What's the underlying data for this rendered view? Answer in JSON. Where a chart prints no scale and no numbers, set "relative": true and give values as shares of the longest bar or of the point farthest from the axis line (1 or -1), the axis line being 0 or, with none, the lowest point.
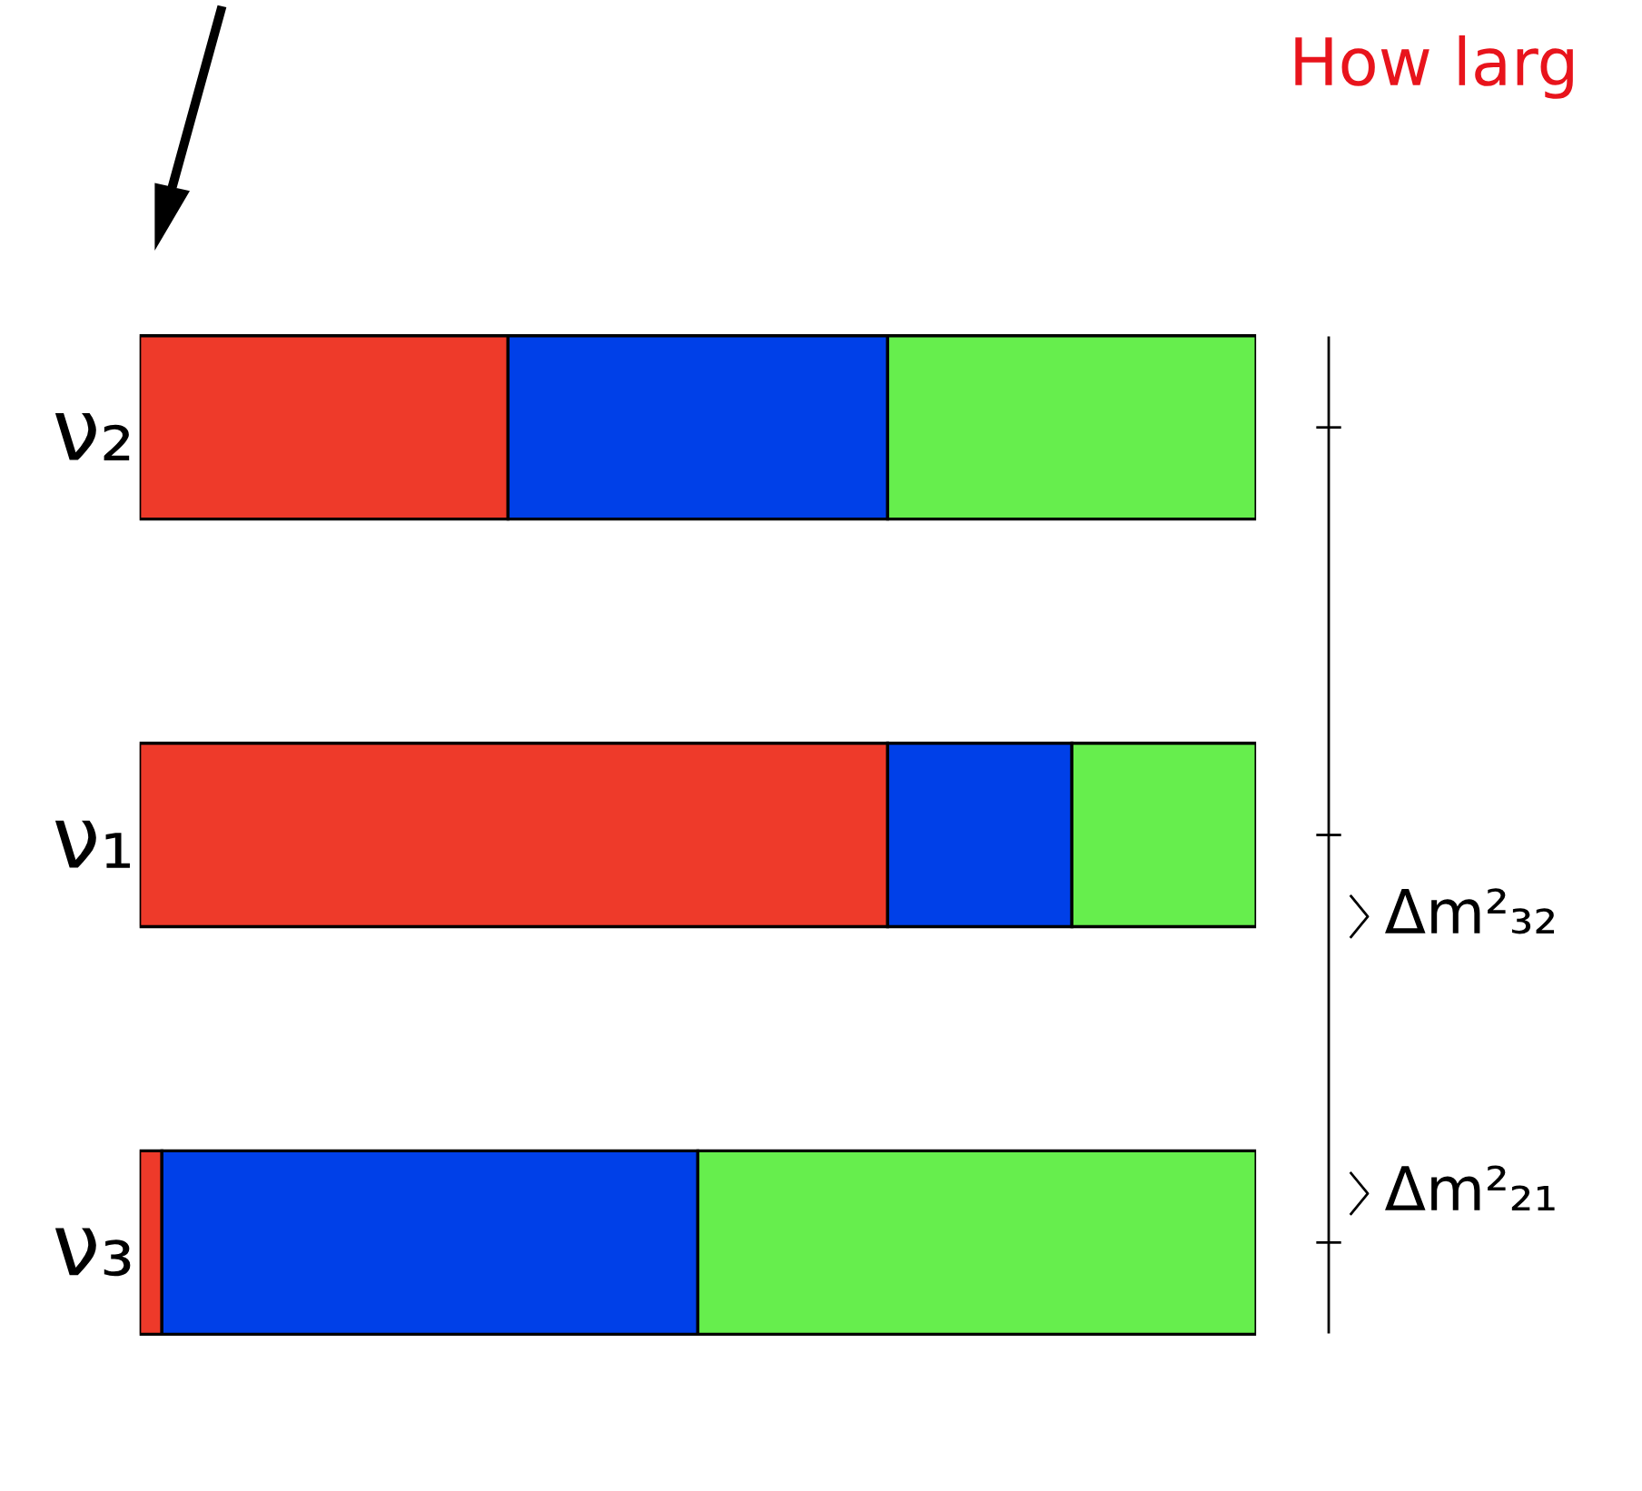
{
  "chart_data": {
    "type": "bar",
    "orientation": "horizontal",
    "stacked": true,
    "relative": true,
    "title": "How larg",
    "categories": [
      "ν₂",
      "ν₁",
      "ν₃"
    ],
    "series": [
      {
        "color": "#ee3a2a",
        "values": [
          0.33,
          0.67,
          0.02
        ]
      },
      {
        "color": "#0040e8",
        "values": [
          0.34,
          0.165,
          0.48
        ]
      },
      {
        "color": "#66ee4d",
        "values": [
          0.33,
          0.165,
          0.5
        ]
      }
    ],
    "annotations": [
      "Δm²₃₂",
      "Δm²₂₁"
    ],
    "grid": false,
    "legend": false
  }
}
